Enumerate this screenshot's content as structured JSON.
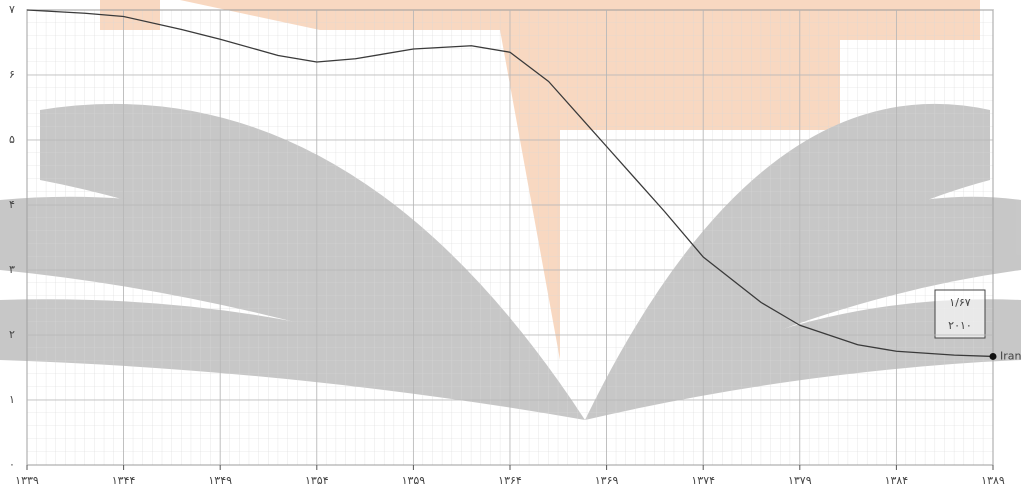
{
  "chart_data": {
    "type": "line",
    "x": [
      1339,
      1342,
      1344,
      1347,
      1349,
      1352,
      1354,
      1356,
      1359,
      1362,
      1364,
      1366,
      1369,
      1372,
      1374,
      1377,
      1379,
      1382,
      1384,
      1387,
      1389
    ],
    "series": [
      {
        "name": "Iran",
        "color": "#3a3a3a",
        "values": [
          7.0,
          6.95,
          6.9,
          6.7,
          6.55,
          6.3,
          6.2,
          6.25,
          6.4,
          6.45,
          6.35,
          5.9,
          4.9,
          3.9,
          3.2,
          2.5,
          2.15,
          1.85,
          1.75,
          1.69,
          1.67
        ]
      }
    ],
    "annotation": {
      "value": "۱/۶۷",
      "year": "۲۰۱۰"
    },
    "xlim": [
      1339,
      1389
    ],
    "ylim": [
      0,
      7
    ],
    "xticks": [
      {
        "value": 1339,
        "label": "۱۳۳۹"
      },
      {
        "value": 1344,
        "label": "۱۳۴۴"
      },
      {
        "value": 1349,
        "label": "۱۳۴۹"
      },
      {
        "value": 1354,
        "label": "۱۳۵۴"
      },
      {
        "value": 1359,
        "label": "۱۳۵۹"
      },
      {
        "value": 1364,
        "label": "۱۳۶۴"
      },
      {
        "value": 1369,
        "label": "۱۳۶۹"
      },
      {
        "value": 1374,
        "label": "۱۳۷۴"
      },
      {
        "value": 1379,
        "label": "۱۳۷۹"
      },
      {
        "value": 1384,
        "label": "۱۳۸۴"
      },
      {
        "value": 1389,
        "label": "۱۳۸۹"
      }
    ],
    "yticks": [
      {
        "value": 0,
        "label": "۰"
      },
      {
        "value": 1,
        "label": "۱"
      },
      {
        "value": 2,
        "label": "۲"
      },
      {
        "value": 3,
        "label": "۳"
      },
      {
        "value": 4,
        "label": "۴"
      },
      {
        "value": 5,
        "label": "۵"
      },
      {
        "value": 6,
        "label": "۶"
      },
      {
        "value": 7,
        "label": "۷"
      }
    ],
    "grid": true
  }
}
